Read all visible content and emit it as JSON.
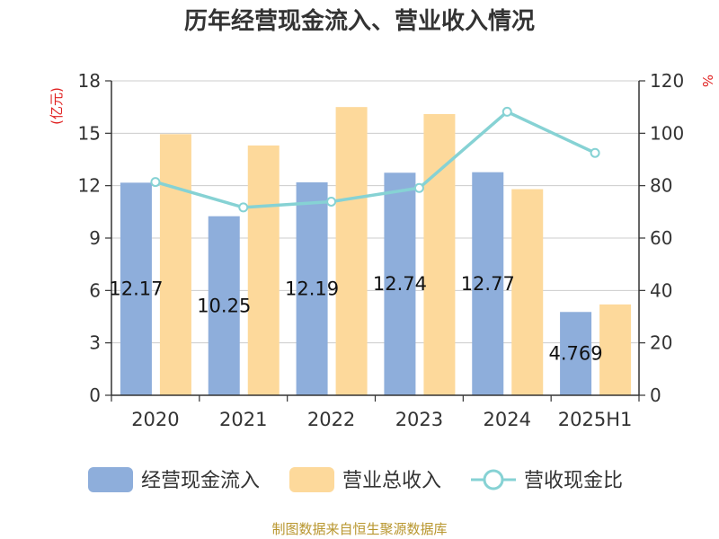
{
  "chart_data": {
    "type": "bar",
    "title": "历年经营现金流入、营业收入情况",
    "categories": [
      "2020",
      "2021",
      "2022",
      "2023",
      "2024",
      "2025H1"
    ],
    "series": [
      {
        "name": "经营现金流入",
        "type": "bar",
        "axis": "left",
        "color": "#8eaedb",
        "values": [
          12.17,
          10.25,
          12.19,
          12.74,
          12.77,
          4.769
        ],
        "labels": [
          "12.17",
          "10.25",
          "12.19",
          "12.74",
          "12.77",
          "4.769"
        ]
      },
      {
        "name": "营业总收入",
        "type": "bar",
        "axis": "left",
        "color": "#fdd99b",
        "values": [
          14.95,
          14.3,
          16.5,
          16.1,
          11.8,
          5.2
        ]
      },
      {
        "name": "营收现金比",
        "type": "line",
        "axis": "right",
        "color": "#86d2d4",
        "values": [
          81.4,
          71.7,
          73.9,
          79.1,
          108.2,
          92.5
        ]
      }
    ],
    "left_axis": {
      "unit": "(亿元)",
      "ylim": [
        0,
        18
      ],
      "ticks": [
        "0",
        "3",
        "6",
        "9",
        "12",
        "15",
        "18"
      ]
    },
    "right_axis": {
      "unit": "%",
      "ylim": [
        0,
        120
      ],
      "ticks": [
        "0",
        "20",
        "40",
        "60",
        "80",
        "100",
        "120"
      ]
    },
    "grid": true,
    "legend": "bottom"
  },
  "footer": {
    "source": "制图数据来自恒生聚源数据库"
  }
}
